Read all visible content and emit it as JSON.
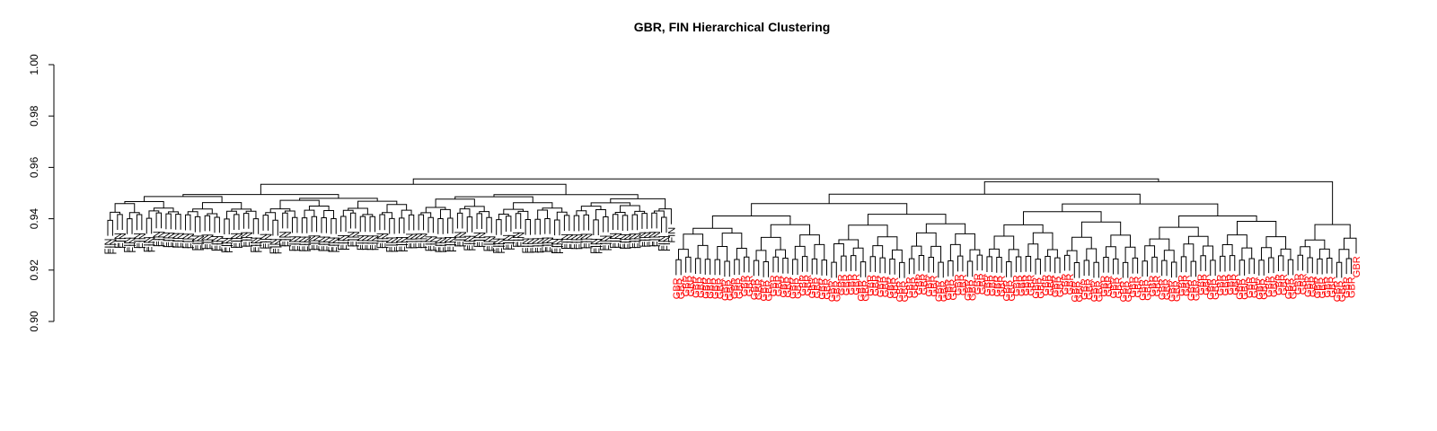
{
  "chart_data": {
    "type": "dendrogram",
    "title": "GBR, FIN Hierarchical Clustering",
    "xlabel": "",
    "ylabel": "",
    "ylim": [
      0.9,
      1.0
    ],
    "yticks": [
      "0.90",
      "0.92",
      "0.94",
      "0.96",
      "0.98",
      "1.00"
    ],
    "grid": false,
    "root_height": 0.9555,
    "label_colors": {
      "FIN": "#000000",
      "GBR": "#ff0000"
    },
    "groups": [
      {
        "label": "FIN",
        "count": 117,
        "height_range": [
          0.939,
          0.952
        ]
      },
      {
        "label": "GBR",
        "count": 141,
        "height_range": [
          0.92,
          0.955
        ]
      }
    ],
    "notable_merges": [
      {
        "labels": [
          "GBR",
          "GBR"
        ],
        "height": 0.913
      },
      {
        "labels": [
          "GBR",
          "GBR"
        ],
        "height": 0.911
      },
      {
        "labels": [
          "GBR",
          "FIN"
        ],
        "height": 0.934
      }
    ]
  }
}
